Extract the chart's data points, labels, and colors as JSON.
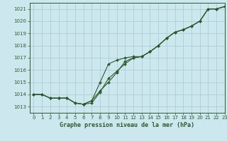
{
  "title": "Graphe pression niveau de la mer (hPa)",
  "bg_color": "#cce8ee",
  "grid_color": "#aacdd6",
  "line_color": "#2d5a2d",
  "xlim": [
    -0.5,
    23
  ],
  "ylim": [
    1012.5,
    1021.5
  ],
  "yticks": [
    1013,
    1014,
    1015,
    1016,
    1017,
    1018,
    1019,
    1020,
    1021
  ],
  "xticks": [
    0,
    1,
    2,
    3,
    4,
    5,
    6,
    7,
    8,
    9,
    10,
    11,
    12,
    13,
    14,
    15,
    16,
    17,
    18,
    19,
    20,
    21,
    22,
    23
  ],
  "series1_x": [
    0,
    1,
    2,
    3,
    4,
    5,
    6,
    7,
    8,
    9,
    10,
    11,
    12,
    13,
    14,
    15,
    16,
    17,
    18,
    19,
    20,
    21,
    22,
    23
  ],
  "series1_y": [
    1014.0,
    1014.0,
    1013.7,
    1013.7,
    1013.7,
    1013.3,
    1013.2,
    1013.3,
    1014.2,
    1015.3,
    1015.9,
    1016.5,
    1017.0,
    1017.1,
    1017.5,
    1018.0,
    1018.6,
    1019.1,
    1019.3,
    1019.6,
    1020.0,
    1021.0,
    1021.0,
    1021.2
  ],
  "series2_x": [
    0,
    1,
    2,
    3,
    4,
    5,
    6,
    7,
    8,
    9,
    10,
    11,
    12,
    13,
    14,
    15,
    16,
    17,
    18,
    19,
    20,
    21,
    22,
    23
  ],
  "series2_y": [
    1014.0,
    1014.0,
    1013.7,
    1013.7,
    1013.7,
    1013.3,
    1013.2,
    1013.5,
    1014.3,
    1015.0,
    1015.8,
    1016.7,
    1017.0,
    1017.1,
    1017.5,
    1018.0,
    1018.6,
    1019.1,
    1019.3,
    1019.6,
    1020.0,
    1021.0,
    1021.0,
    1021.2
  ],
  "series3_x": [
    0,
    1,
    2,
    3,
    4,
    5,
    6,
    7,
    8,
    9,
    10,
    11,
    12,
    13,
    14,
    15,
    16,
    17,
    18,
    19,
    20,
    21,
    22,
    23
  ],
  "series3_y": [
    1014.0,
    1014.0,
    1013.7,
    1013.7,
    1013.7,
    1013.3,
    1013.2,
    1013.5,
    1015.0,
    1016.5,
    1016.8,
    1017.0,
    1017.1,
    1017.1,
    1017.5,
    1018.0,
    1018.6,
    1019.1,
    1019.3,
    1019.6,
    1020.0,
    1021.0,
    1021.0,
    1021.2
  ]
}
